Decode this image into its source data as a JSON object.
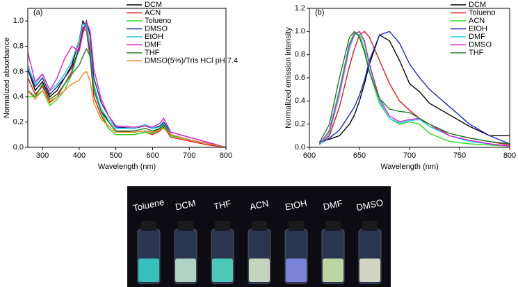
{
  "chart_data": [
    {
      "type": "line",
      "annotation": "(a)",
      "x_label": "Wavelength (nm)",
      "y_label": "Normalized absorbance",
      "xlim": [
        260,
        800
      ],
      "ylim": [
        0,
        1.1
      ],
      "xticks": [
        300,
        400,
        500,
        600,
        700,
        800
      ],
      "yticks": [
        {
          "value": 0,
          "label": "0.0"
        },
        {
          "value": 0.2,
          "label": "0.2"
        },
        {
          "value": 0.4,
          "label": "0.4"
        },
        {
          "value": 0.6,
          "label": "0.6"
        },
        {
          "value": 0.8,
          "label": "0.8"
        },
        {
          "value": 1,
          "label": "1.0"
        }
      ],
      "x": [
        260,
        280,
        300,
        320,
        340,
        360,
        380,
        400,
        410,
        420,
        430,
        440,
        460,
        480,
        500,
        550,
        580,
        600,
        620,
        630,
        650,
        700,
        750,
        800
      ],
      "series": [
        {
          "name": "DCM",
          "color": "#000000",
          "values": [
            0.62,
            0.45,
            0.52,
            0.4,
            0.45,
            0.55,
            0.65,
            0.85,
            1.0,
            0.95,
            0.75,
            0.45,
            0.3,
            0.2,
            0.13,
            0.12,
            0.13,
            0.12,
            0.15,
            0.18,
            0.1,
            0.06,
            0.03,
            0.0
          ]
        },
        {
          "name": "ACN",
          "color": "#e8141b",
          "values": [
            0.55,
            0.42,
            0.48,
            0.36,
            0.4,
            0.5,
            0.6,
            0.8,
            0.95,
            0.92,
            0.7,
            0.4,
            0.25,
            0.15,
            0.1,
            0.1,
            0.12,
            0.1,
            0.13,
            0.16,
            0.08,
            0.05,
            0.02,
            0.0
          ]
        },
        {
          "name": "Tolueno",
          "color": "#22e01b",
          "values": [
            0.4,
            0.4,
            0.45,
            0.33,
            0.38,
            0.45,
            0.58,
            0.78,
            0.92,
            0.98,
            0.8,
            0.5,
            0.28,
            0.15,
            0.1,
            0.1,
            0.12,
            0.11,
            0.14,
            0.17,
            0.09,
            0.06,
            0.03,
            0.0
          ]
        },
        {
          "name": "DMSO",
          "color": "#1a2a8c",
          "values": [
            0.62,
            0.48,
            0.55,
            0.42,
            0.48,
            0.55,
            0.63,
            0.78,
            0.92,
            1.0,
            0.88,
            0.55,
            0.35,
            0.25,
            0.16,
            0.15,
            0.17,
            0.15,
            0.17,
            0.2,
            0.12,
            0.08,
            0.04,
            0.0
          ]
        },
        {
          "name": "EtOH",
          "color": "#19c8e0",
          "values": [
            0.65,
            0.5,
            0.58,
            0.45,
            0.5,
            0.58,
            0.68,
            0.85,
            0.98,
            0.96,
            0.78,
            0.48,
            0.3,
            0.22,
            0.15,
            0.15,
            0.18,
            0.15,
            0.16,
            0.19,
            0.1,
            0.06,
            0.03,
            0.0
          ]
        },
        {
          "name": "DMF",
          "color": "#e01bd8",
          "values": [
            0.75,
            0.52,
            0.58,
            0.45,
            0.55,
            0.7,
            0.8,
            0.76,
            0.9,
            0.99,
            0.92,
            0.62,
            0.38,
            0.25,
            0.17,
            0.16,
            0.17,
            0.16,
            0.19,
            0.23,
            0.12,
            0.08,
            0.04,
            0.0
          ]
        },
        {
          "name": "THF",
          "color": "#1a7a22",
          "values": [
            0.45,
            0.4,
            0.5,
            0.38,
            0.42,
            0.5,
            0.58,
            0.65,
            0.72,
            0.78,
            0.72,
            0.45,
            0.28,
            0.2,
            0.13,
            0.13,
            0.15,
            0.13,
            0.15,
            0.18,
            0.1,
            0.06,
            0.03,
            0.0
          ]
        },
        {
          "name": "DMSO(5%)/Tris HCl pH 7.4",
          "color": "#f08a1a",
          "values": [
            0.45,
            0.38,
            0.45,
            0.35,
            0.4,
            0.45,
            0.5,
            0.53,
            0.58,
            0.6,
            0.52,
            0.35,
            0.22,
            0.17,
            0.12,
            0.12,
            0.13,
            0.12,
            0.14,
            0.15,
            0.1,
            0.06,
            0.03,
            0.0
          ]
        }
      ]
    },
    {
      "type": "line",
      "annotation": "(b)",
      "x_label": "Wavelength (nm)",
      "y_label": "Normalized emission intensity",
      "xlim": [
        600,
        800
      ],
      "ylim": [
        0,
        1.2
      ],
      "xticks": [
        600,
        650,
        700,
        750,
        800
      ],
      "yticks": [
        {
          "value": 0,
          "label": "0.0"
        },
        {
          "value": 0.2,
          "label": "0.2"
        },
        {
          "value": 0.4,
          "label": "0.4"
        },
        {
          "value": 0.6,
          "label": "0.6"
        },
        {
          "value": 0.8,
          "label": "0.8"
        },
        {
          "value": 1,
          "label": "1.0"
        },
        {
          "value": 1.2,
          "label": "1.2"
        }
      ],
      "x": [
        610,
        620,
        630,
        640,
        645,
        650,
        655,
        660,
        670,
        680,
        690,
        700,
        710,
        720,
        740,
        760,
        780,
        800
      ],
      "series": [
        {
          "name": "DCM",
          "color": "#000000",
          "values": [
            0.05,
            0.07,
            0.1,
            0.2,
            0.28,
            0.4,
            0.55,
            0.72,
            0.97,
            0.92,
            0.75,
            0.55,
            0.48,
            0.38,
            0.28,
            0.18,
            0.1,
            0.1
          ]
        },
        {
          "name": "Tolueno",
          "color": "#e8141b",
          "values": [
            0.03,
            0.1,
            0.35,
            0.7,
            0.85,
            0.97,
            1.0,
            0.95,
            0.75,
            0.55,
            0.4,
            0.32,
            0.25,
            0.18,
            0.12,
            0.08,
            0.05,
            0.02
          ]
        },
        {
          "name": "ACN",
          "color": "#22e01b",
          "values": [
            0.02,
            0.15,
            0.5,
            0.9,
            0.99,
            0.97,
            0.85,
            0.65,
            0.38,
            0.25,
            0.2,
            0.22,
            0.2,
            0.12,
            0.05,
            0.03,
            0.02,
            0.01
          ]
        },
        {
          "name": "EtOH",
          "color": "#1a22d0",
          "values": [
            0.03,
            0.08,
            0.15,
            0.28,
            0.35,
            0.45,
            0.58,
            0.75,
            0.97,
            1.0,
            0.9,
            0.72,
            0.6,
            0.5,
            0.35,
            0.2,
            0.1,
            0.03
          ]
        },
        {
          "name": "DMF",
          "color": "#19d8e8",
          "values": [
            0.02,
            0.12,
            0.45,
            0.85,
            0.97,
            1.0,
            0.9,
            0.7,
            0.4,
            0.25,
            0.21,
            0.23,
            0.24,
            0.18,
            0.1,
            0.05,
            0.03,
            0.01
          ]
        },
        {
          "name": "DMSO",
          "color": "#e01bd8",
          "values": [
            0.03,
            0.14,
            0.48,
            0.88,
            0.98,
            1.0,
            0.92,
            0.72,
            0.42,
            0.27,
            0.22,
            0.24,
            0.25,
            0.2,
            0.1,
            0.06,
            0.03,
            0.01
          ]
        },
        {
          "name": "THF",
          "color": "#1a7a22",
          "values": [
            0.04,
            0.2,
            0.6,
            0.95,
            1.0,
            0.95,
            0.82,
            0.65,
            0.42,
            0.33,
            0.31,
            0.3,
            0.25,
            0.2,
            0.12,
            0.08,
            0.05,
            0.03
          ]
        }
      ]
    }
  ],
  "photo": {
    "labels": [
      "Toluene",
      "DCM",
      "THF",
      "ACN",
      "EtOH",
      "DMF",
      "DMSO"
    ]
  }
}
